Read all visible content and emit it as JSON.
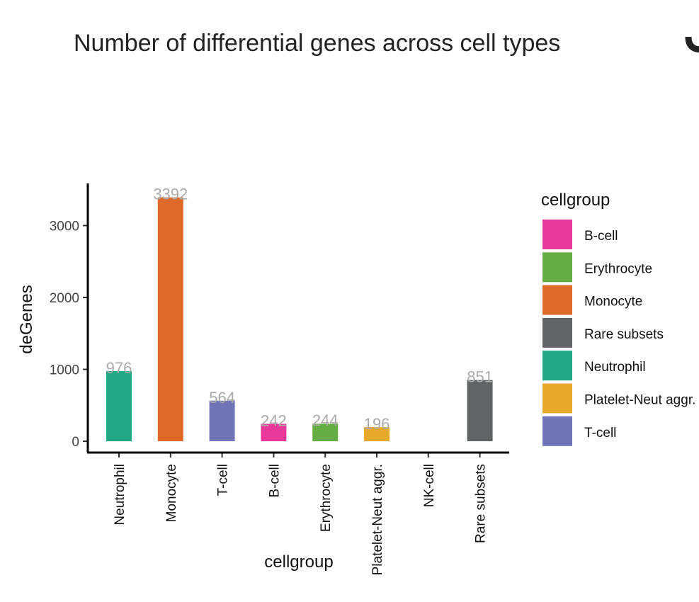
{
  "chart_data": {
    "type": "bar",
    "title": "Number of differential genes across cell types",
    "xlabel": "cellgroup",
    "ylabel": "deGenes",
    "ylim": [
      0,
      3550
    ],
    "yticks": [
      0,
      1000,
      2000,
      3000
    ],
    "categories": [
      "Neutrophil",
      "Monocyte",
      "T-cell",
      "B-cell",
      "Erythrocyte",
      "Platelet-Neut aggr.",
      "NK-cell",
      "Rare subsets"
    ],
    "values": [
      976,
      3392,
      564,
      242,
      244,
      196,
      null,
      851
    ],
    "data_labels": [
      "976",
      "3392",
      "564",
      "242",
      "244",
      "196",
      "",
      "851"
    ],
    "bar_colors": [
      "#22a884",
      "#dd6a2a",
      "#7174b6",
      "#e8399b",
      "#66ad45",
      "#e6a92b",
      null,
      "#606464"
    ],
    "grid": false,
    "legend": {
      "title": "cellgroup",
      "position": "right",
      "items": [
        {
          "label": "B-cell",
          "color": "#e8399b"
        },
        {
          "label": "Erythrocyte",
          "color": "#66ad45"
        },
        {
          "label": "Monocyte",
          "color": "#dd6a2a"
        },
        {
          "label": "Rare subsets",
          "color": "#606464"
        },
        {
          "label": "Neutrophil",
          "color": "#22a884"
        },
        {
          "label": "Platelet-Neut aggr.",
          "color": "#e6a92b"
        },
        {
          "label": "T-cell",
          "color": "#7174b6"
        }
      ]
    }
  }
}
